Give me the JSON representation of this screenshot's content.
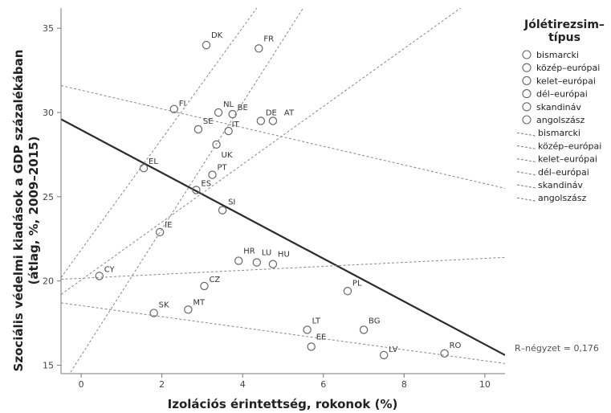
{
  "chart_data": {
    "type": "scatter",
    "xlabel": "Izolációs érintettség, rokonok (%)",
    "ylabel_line1": "Szociális védelmi kiadások a GDP százalékában",
    "ylabel_line2": "(átlag, %, 2009–2015)",
    "xlim": [
      -0.5,
      10.5
    ],
    "ylim": [
      14.5,
      36.2
    ],
    "x_ticks": [
      0,
      2,
      4,
      6,
      8,
      10
    ],
    "y_ticks": [
      15,
      20,
      25,
      30,
      35
    ],
    "points": [
      {
        "label": "DK",
        "x": 3.1,
        "y": 34.0,
        "group": "skandináv"
      },
      {
        "label": "FR",
        "x": 4.4,
        "y": 33.8,
        "group": "bismarcki"
      },
      {
        "label": "FI",
        "x": 2.3,
        "y": 30.2,
        "group": "skandináv"
      },
      {
        "label": "NL",
        "x": 3.4,
        "y": 30.0,
        "group": "bismarcki"
      },
      {
        "label": "BE",
        "x": 3.75,
        "y": 29.9,
        "group": "bismarcki"
      },
      {
        "label": "DE",
        "x": 4.45,
        "y": 29.5,
        "group": "bismarcki"
      },
      {
        "label": "AT",
        "x": 4.75,
        "y": 29.5,
        "group": "bismarcki"
      },
      {
        "label": "SE",
        "x": 2.9,
        "y": 29.0,
        "group": "skandináv"
      },
      {
        "label": "IT",
        "x": 3.65,
        "y": 28.9,
        "group": "dél-európai"
      },
      {
        "label": "UK",
        "x": 3.35,
        "y": 28.1,
        "group": "angolszász"
      },
      {
        "label": "PT",
        "x": 3.25,
        "y": 26.3,
        "group": "dél-európai"
      },
      {
        "label": "EL",
        "x": 1.55,
        "y": 26.7,
        "group": "dél-európai"
      },
      {
        "label": "ES",
        "x": 2.85,
        "y": 25.4,
        "group": "dél-európai"
      },
      {
        "label": "SI",
        "x": 3.5,
        "y": 24.2,
        "group": "közép-európai"
      },
      {
        "label": "IE",
        "x": 1.95,
        "y": 22.9,
        "group": "angolszász"
      },
      {
        "label": "HR",
        "x": 3.9,
        "y": 21.2,
        "group": "kelet-európai"
      },
      {
        "label": "LU",
        "x": 4.35,
        "y": 21.1,
        "group": "bismarcki"
      },
      {
        "label": "HU",
        "x": 4.75,
        "y": 21.0,
        "group": "közép-európai"
      },
      {
        "label": "CY",
        "x": 0.45,
        "y": 20.3,
        "group": "dél-európai"
      },
      {
        "label": "CZ",
        "x": 3.05,
        "y": 19.7,
        "group": "közép-európai"
      },
      {
        "label": "PL",
        "x": 6.6,
        "y": 19.4,
        "group": "közép-európai"
      },
      {
        "label": "MT",
        "x": 2.65,
        "y": 18.3,
        "group": "dél-európai"
      },
      {
        "label": "SK",
        "x": 1.8,
        "y": 18.1,
        "group": "közép-európai"
      },
      {
        "label": "LT",
        "x": 5.6,
        "y": 17.1,
        "group": "kelet-európai"
      },
      {
        "label": "BG",
        "x": 7.0,
        "y": 17.1,
        "group": "kelet-európai"
      },
      {
        "label": "EE",
        "x": 5.7,
        "y": 16.1,
        "group": "kelet-európai"
      },
      {
        "label": "LV",
        "x": 7.5,
        "y": 15.6,
        "group": "kelet-európai"
      },
      {
        "label": "RO",
        "x": 9.0,
        "y": 15.7,
        "group": "kelet-európai"
      }
    ],
    "fit_lines": [
      {
        "name": "overall",
        "x1": -0.5,
        "y1": 29.6,
        "x2": 10.5,
        "y2": 15.6
      },
      {
        "name": "bismarcki",
        "x1": -0.5,
        "y1": 31.6,
        "x2": 10.5,
        "y2": 25.5
      },
      {
        "name": "közép-európai",
        "x1": -0.5,
        "y1": 13.7,
        "x2": 5.5,
        "y2": 36.2
      },
      {
        "name": "kelet-európai",
        "x1": -0.5,
        "y1": 18.7,
        "x2": 10.5,
        "y2": 15.1
      },
      {
        "name": "dél-európai",
        "x1": -0.5,
        "y1": 19.2,
        "x2": 9.4,
        "y2": 36.2
      },
      {
        "name": "skandináv",
        "x1": -0.5,
        "y1": 20.2,
        "x2": 4.35,
        "y2": 36.2
      },
      {
        "name": "angolszász",
        "x1": -0.5,
        "y1": 20.1,
        "x2": 10.5,
        "y2": 21.4
      }
    ],
    "legend": {
      "title_line1": "Jólétirezsim–",
      "title_line2": "típus",
      "marker_entries": [
        "bismarcki",
        "közép–európai",
        "kelet–európai",
        "dél–európai",
        "skandináv",
        "angolszász"
      ],
      "line_entries": [
        "bismarcki",
        "közép–európai",
        "kelet–európai",
        "dél–európai",
        "skandináv",
        "angolszász"
      ],
      "placement": "right"
    },
    "annotation": "R–négyzet = 0,176"
  }
}
